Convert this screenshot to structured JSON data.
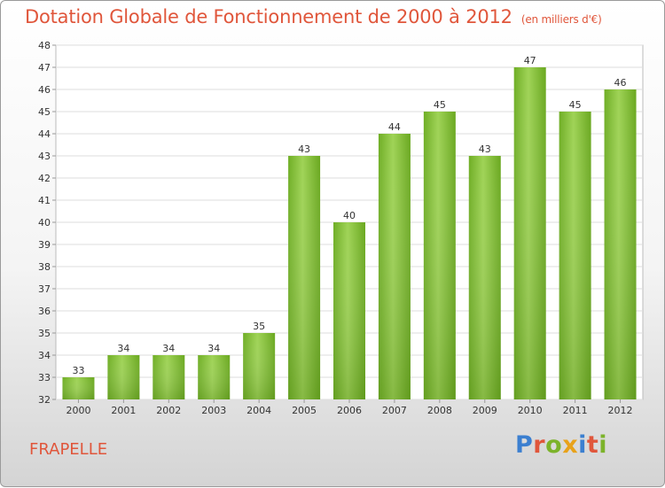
{
  "header": {
    "title": "Dotation Globale de Fonctionnement de 2000 à 2012",
    "unit": "(en milliers d'€)"
  },
  "footer": {
    "commune": "FRAPELLE",
    "logo": {
      "text": "Proxiti",
      "letter_colors": [
        "#3b7fd0",
        "#e0563b",
        "#7cb32a",
        "#e8a21a",
        "#3b7fd0",
        "#e0563b",
        "#7cb32a"
      ]
    }
  },
  "chart_data": {
    "type": "bar",
    "title": "Dotation Globale de Fonctionnement de 2000 à 2012",
    "subtitle": "(en milliers d'€)",
    "categories": [
      "2000",
      "2001",
      "2002",
      "2003",
      "2004",
      "2005",
      "2006",
      "2007",
      "2008",
      "2009",
      "2010",
      "2011",
      "2012"
    ],
    "values": [
      33,
      34,
      34,
      34,
      35,
      43,
      40,
      44,
      45,
      43,
      47,
      45,
      46
    ],
    "ylim": [
      32,
      48
    ],
    "yticks": [
      32,
      33,
      34,
      35,
      36,
      37,
      38,
      39,
      40,
      41,
      42,
      43,
      44,
      45,
      46,
      47,
      48
    ],
    "grid": true,
    "data_labels": true,
    "bar_color": "#7ab830",
    "bar_color_light": "#9fd356"
  }
}
